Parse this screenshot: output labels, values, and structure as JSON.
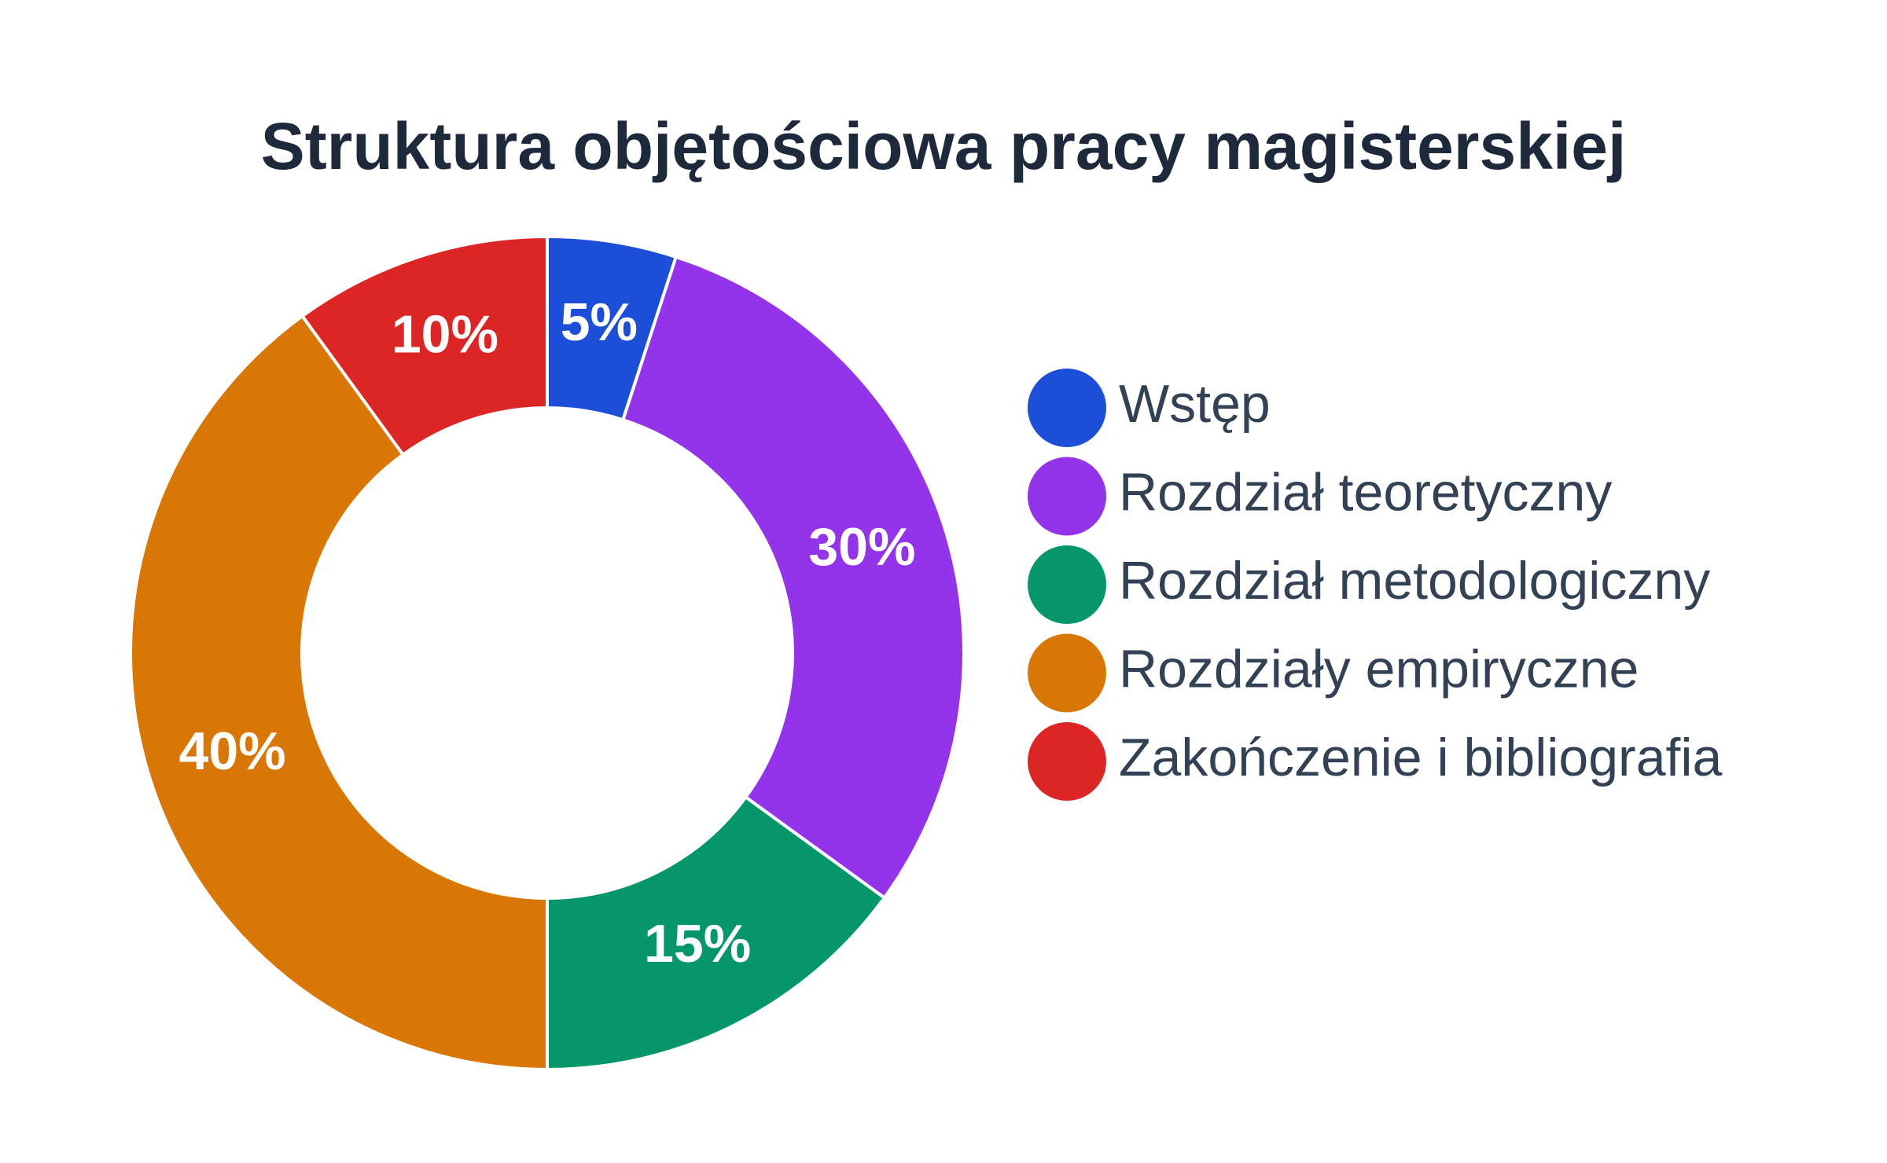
{
  "chart_data": {
    "type": "donut",
    "title": "Struktura objętościowa pracy magisterskiej",
    "categories": [
      "Wstęp",
      "Rozdział teoretyczny",
      "Rozdział metodologiczny",
      "Rozdziały empiryczne",
      "Zakończenie i bibliografia"
    ],
    "values": [
      5,
      30,
      15,
      40,
      10
    ],
    "value_labels": [
      "5%",
      "30%",
      "15%",
      "40%",
      "10%"
    ],
    "colors": [
      "#1d4ed8",
      "#9333ea",
      "#059669",
      "#d97706",
      "#dc2626"
    ],
    "legend": "right"
  }
}
